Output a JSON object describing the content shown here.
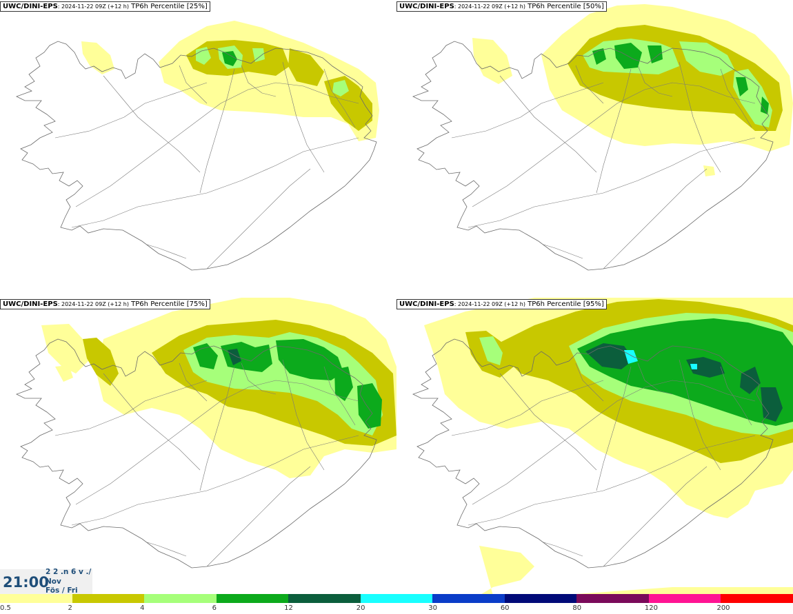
{
  "panels": [
    {
      "model": "UWC/DINI-EPS",
      "meta": ": 2024-11-22 09Z (+12 h)",
      "field": "TP6h Percentile [25%]",
      "level": 0
    },
    {
      "model": "UWC/DINI-EPS",
      "meta": ": 2024-11-22 09Z (+12 h)",
      "field": "TP6h Percentile [50%]",
      "level": 1
    },
    {
      "model": "UWC/DINI-EPS",
      "meta": ": 2024-11-22 09Z (+12 h)",
      "field": "TP6h Percentile [75%]",
      "level": 2
    },
    {
      "model": "UWC/DINI-EPS",
      "meta": ": 2024-11-22 09Z (+12 h)",
      "field": "TP6h Percentile [95%]",
      "level": 3
    }
  ],
  "time_box": {
    "time": "21:00",
    "date_top": "2 2 .n 6 v ./",
    "month": "Nov",
    "weekday": "Fös / Fri"
  },
  "legend": {
    "bins": [
      {
        "label": "0.5",
        "color": "#ffff99"
      },
      {
        "label": "2",
        "color": "#c8c800"
      },
      {
        "label": "4",
        "color": "#a6ff7a"
      },
      {
        "label": "6",
        "color": "#0caa1c"
      },
      {
        "label": "12",
        "color": "#0b5e3c"
      },
      {
        "label": "20",
        "color": "#19ffff"
      },
      {
        "label": "30",
        "color": "#0a3cc8"
      },
      {
        "label": "60",
        "color": "#000a78"
      },
      {
        "label": "80",
        "color": "#7a0a5a"
      },
      {
        "label": "120",
        "color": "#ff1493"
      },
      {
        "label": "200",
        "color": "#ff0000"
      }
    ]
  }
}
